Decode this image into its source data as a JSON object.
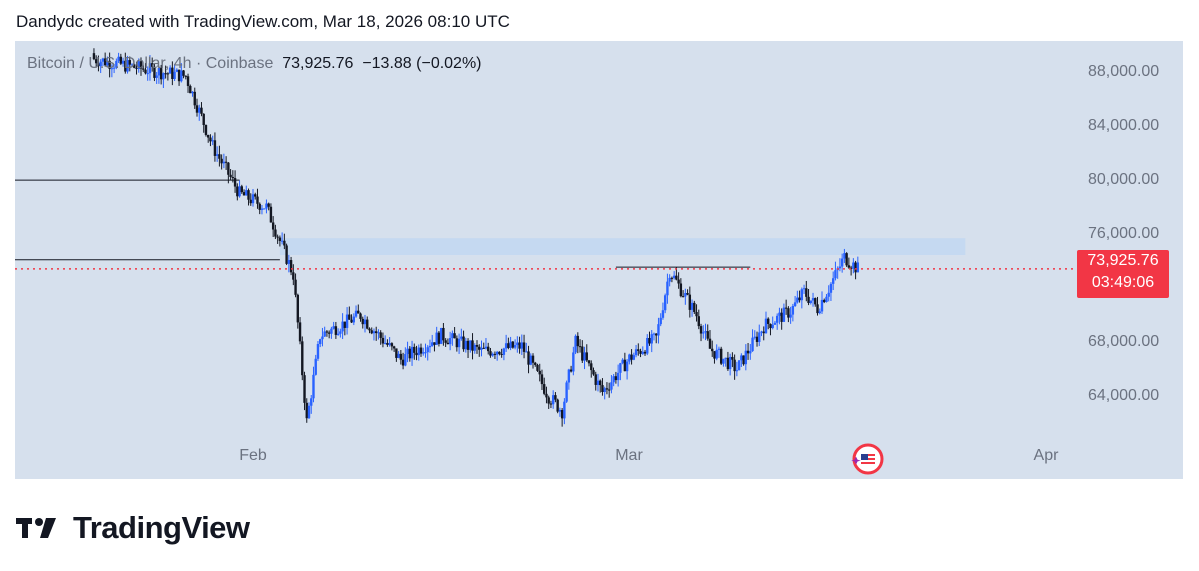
{
  "header": {
    "text": "Dandydc created with TradingView.com, Mar 18, 2026 08:10 UTC"
  },
  "legend": {
    "symbol": "Bitcoin / U.S. Dollar, 4h · Coinbase",
    "last": "73,925.76",
    "change": "−13.88 (−0.02%)"
  },
  "price_tag": {
    "price": "73,925.76",
    "countdown": "03:49:06"
  },
  "footer": {
    "brand": "TradingView"
  },
  "colors": {
    "background": "#d6e0ed",
    "up_candle": "#2962ff",
    "down_candle": "#131722",
    "zone": "#c5d9f1",
    "current_price_line": "#f23645"
  },
  "chart_data": {
    "type": "candlestick",
    "title": "Bitcoin / U.S. Dollar, 4h · Coinbase",
    "x_ticks": [
      "Feb",
      "Mar",
      "Apr"
    ],
    "y_ticks": [
      "88,000.00",
      "84,000.00",
      "80,000.00",
      "76,000.00",
      "68,000.00",
      "64,000.00"
    ],
    "y_tick_values": [
      88000,
      84000,
      80000,
      76000,
      68000,
      64000
    ],
    "ylim": [
      61400,
      90800
    ],
    "current_price": 73925.76,
    "horizontal_lines": [
      {
        "from": "Jan 14",
        "to": "Jan 31",
        "price": 80500
      },
      {
        "from": "Jan 14",
        "to": "Feb 3",
        "price": 74600
      }
    ],
    "resistance_line": {
      "from": "Feb 28",
      "to": "Mar 10",
      "price": 74050
    },
    "zone": {
      "from": "Feb 3",
      "to": "Mar 26",
      "low": 74950,
      "high": 76200
    },
    "price_path": [
      {
        "date": "Jan 20",
        "close": 89500
      },
      {
        "date": "Jan 24",
        "close": 88700
      },
      {
        "date": "Jan 27",
        "close": 88200
      },
      {
        "date": "Jan 29",
        "close": 83000
      },
      {
        "date": "Jan 31",
        "close": 79500
      },
      {
        "date": "Feb 2",
        "close": 78500
      },
      {
        "date": "Feb 4",
        "close": 73500
      },
      {
        "date": "Feb 5",
        "close": 62600
      },
      {
        "date": "Feb 6",
        "close": 69000
      },
      {
        "date": "Feb 9",
        "close": 70500
      },
      {
        "date": "Feb 12",
        "close": 67200
      },
      {
        "date": "Feb 15",
        "close": 69000
      },
      {
        "date": "Feb 18",
        "close": 67800
      },
      {
        "date": "Feb 21",
        "close": 68200
      },
      {
        "date": "Feb 23",
        "close": 64500
      },
      {
        "date": "Feb 24",
        "close": 63400
      },
      {
        "date": "Feb 25",
        "close": 68500
      },
      {
        "date": "Feb 27",
        "close": 64800
      },
      {
        "date": "Mar 1",
        "close": 67300
      },
      {
        "date": "Mar 3",
        "close": 68800
      },
      {
        "date": "Mar 4",
        "close": 73800
      },
      {
        "date": "Mar 6",
        "close": 70500
      },
      {
        "date": "Mar 7",
        "close": 68000
      },
      {
        "date": "Mar 9",
        "close": 66500
      },
      {
        "date": "Mar 11",
        "close": 69700
      },
      {
        "date": "Mar 13",
        "close": 70800
      },
      {
        "date": "Mar 14",
        "close": 72200
      },
      {
        "date": "Mar 15",
        "close": 71000
      },
      {
        "date": "Mar 16",
        "close": 72800
      },
      {
        "date": "Mar 17",
        "close": 74800
      },
      {
        "date": "Mar 18",
        "close": 73925.76
      }
    ]
  }
}
